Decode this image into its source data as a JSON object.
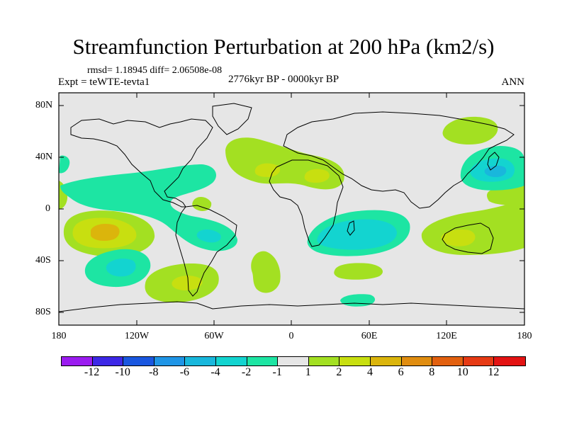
{
  "title": "Streamfunction Perturbation at 200 hPa (km2/s)",
  "stats": "rmsd= 1.18945 diff= 2.06508e-08",
  "experiment": "Expt = teWTE-tevta1",
  "period": "2776kyr BP - 0000kyr BP",
  "season": "ANN",
  "lat_ticks": [
    "80N",
    "40N",
    "0",
    "40S",
    "80S"
  ],
  "lon_ticks": [
    "180",
    "120W",
    "60W",
    "0",
    "60E",
    "120E",
    "180"
  ],
  "colorbar": {
    "labels": [
      "-12",
      "-10",
      "-8",
      "-6",
      "-4",
      "-2",
      "-1",
      "1",
      "2",
      "4",
      "6",
      "8",
      "10",
      "12"
    ],
    "colors": [
      "#9b1cf0",
      "#3d28e6",
      "#1a57e0",
      "#1f95e6",
      "#19b7dc",
      "#13d4d0",
      "#1de5a3",
      "#e6e6e6",
      "#a3e022",
      "#c8df10",
      "#dbb50c",
      "#e08d10",
      "#e2600f",
      "#e63a14",
      "#e31313"
    ]
  },
  "map_fill_colors": {
    "background": "#e6e6e6",
    "level_neg1": "#1de5a3",
    "level_neg2": "#13d4d0",
    "level_neg4": "#19b7dc",
    "level_pos1": "#a3e022",
    "level_pos2": "#c8df10",
    "level_pos4": "#dbb50c"
  }
}
